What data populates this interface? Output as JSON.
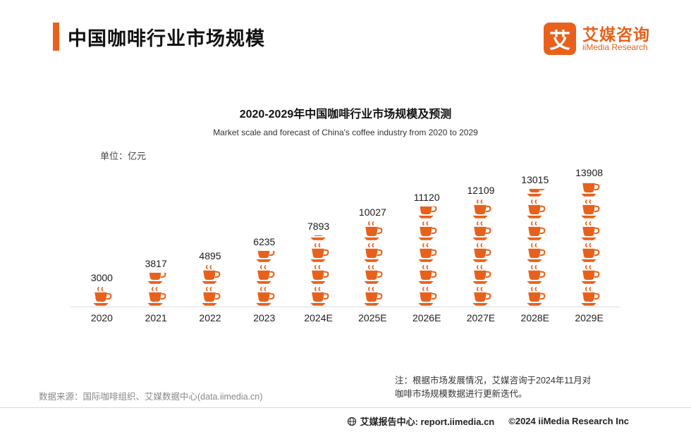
{
  "header": {
    "title": "中国咖啡行业市场规模",
    "logo": {
      "glyph": "艾",
      "brand_cn": "艾媒咨询",
      "brand_en": "iiMedia Research"
    }
  },
  "chart": {
    "title": "2020-2029年中国咖啡行业市场规模及预测",
    "subtitle": "Market scale and forecast of China's coffee industry from 2020 to 2029",
    "unit_label": "单位：亿元"
  },
  "chart_data": {
    "type": "bar",
    "variant": "pictogram-coffee-cups",
    "title": "2020-2029年中国咖啡行业市场规模及预测",
    "subtitle": "Market scale and forecast of China's coffee industry from 2020 to 2029",
    "unit": "亿元",
    "categories": [
      "2020",
      "2021",
      "2022",
      "2023",
      "2024E",
      "2025E",
      "2026E",
      "2027E",
      "2028E",
      "2029E"
    ],
    "values": [
      3000,
      3817,
      4895,
      6235,
      7893,
      10027,
      11120,
      12109,
      13015,
      13908
    ],
    "value_per_icon": 2400,
    "accent_color": "#e8611c",
    "grid": false,
    "legend": false
  },
  "footer": {
    "source": "数据来源：国际咖啡组织、艾媒数据中心(data.iimedia.cn)",
    "note_line1": "注：根据市场发展情况，艾媒咨询于2024年11月对",
    "note_line2": "咖啡市场规模数据进行更新迭代。",
    "report_center": "艾媒报告中心: report.iimedia.cn",
    "copyright": "©2024 iiMedia Research Inc"
  }
}
